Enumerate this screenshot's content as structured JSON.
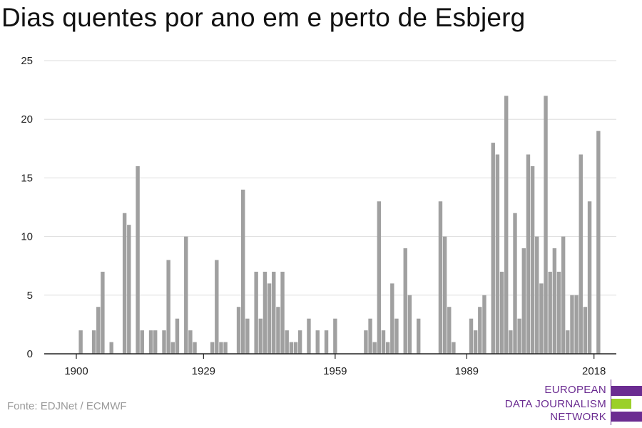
{
  "title": "Dias quentes por ano em e perto de Esbjerg",
  "source": "Fonte: EDJNet / ECMWF",
  "logo": {
    "line1": "EUROPEAN",
    "line2": "DATA JOURNALISM",
    "line3": "NETWORK",
    "colors": {
      "purple": "#6b2c91",
      "green": "#9bd02a"
    }
  },
  "colors": {
    "bar": "#a0a0a0",
    "grid": "#dddddd",
    "axis": "#222222",
    "text": "#222222"
  },
  "chart_data": {
    "type": "bar",
    "title": "Dias quentes por ano em e perto de Esbjerg",
    "xlabel": "",
    "ylabel": "",
    "ylim": [
      0,
      25
    ],
    "yticks": [
      0,
      5,
      10,
      15,
      20,
      25
    ],
    "xticks": [
      1900,
      1929,
      1959,
      1989,
      2018
    ],
    "grid": true,
    "x_start": 1900,
    "values": [
      0,
      2,
      0,
      0,
      2,
      4,
      7,
      0,
      1,
      0,
      0,
      12,
      11,
      0,
      16,
      2,
      0,
      2,
      2,
      0,
      2,
      8,
      1,
      3,
      0,
      10,
      2,
      1,
      0,
      0,
      0,
      1,
      8,
      1,
      1,
      0,
      0,
      4,
      14,
      3,
      0,
      7,
      3,
      7,
      6,
      7,
      4,
      7,
      2,
      1,
      1,
      2,
      0,
      3,
      0,
      2,
      0,
      2,
      0,
      3,
      0,
      0,
      0,
      0,
      0,
      0,
      2,
      3,
      1,
      13,
      2,
      1,
      6,
      3,
      0,
      9,
      5,
      0,
      3,
      0,
      0,
      0,
      0,
      13,
      10,
      4,
      1,
      0,
      0,
      0,
      3,
      2,
      4,
      5,
      0,
      18,
      17,
      7,
      22,
      2,
      12,
      3,
      9,
      17,
      16,
      10,
      6,
      22,
      7,
      9,
      7,
      10,
      2,
      5,
      5,
      17,
      4,
      13,
      0,
      19
    ]
  }
}
